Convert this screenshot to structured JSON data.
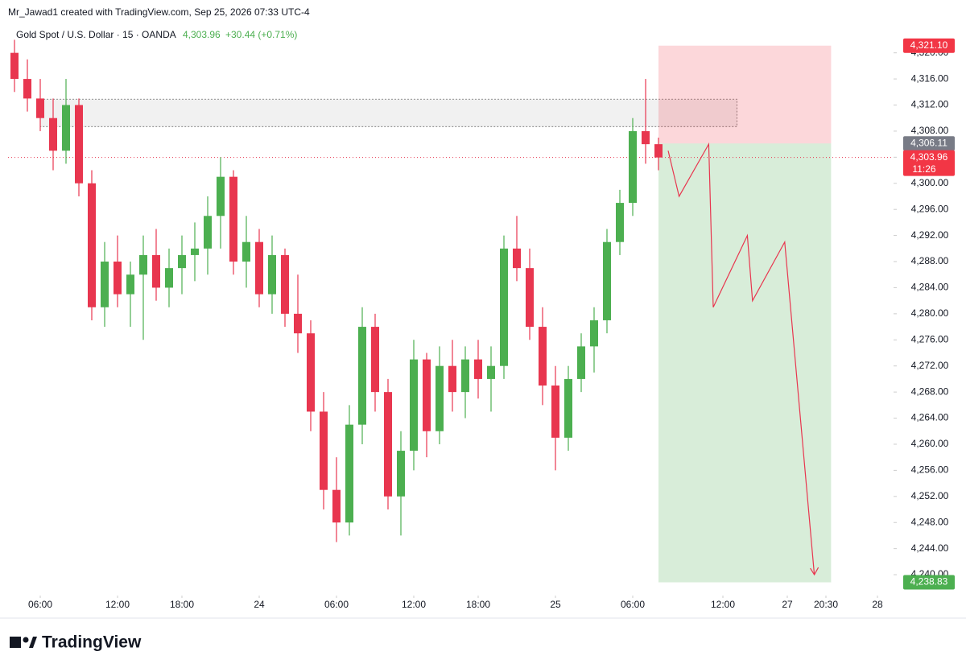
{
  "attribution": "Mr_Jawad1 created with TradingView.com, Sep 25, 2026 07:33 UTC-4",
  "brand": "TradingView",
  "chart_data": {
    "type": "candlestick",
    "title": "Gold Spot / U.S. Dollar · 15 · OANDA",
    "last_price": {
      "value": 4303.96,
      "label": "4,303.96"
    },
    "change": "+30.44 (+0.71%)",
    "countdown": "11:26",
    "up_color": "#4caf50",
    "down_color": "#e8364f",
    "open": [
      4320,
      4316,
      4313,
      4310,
      4305,
      4312,
      4300,
      4281,
      4288,
      4283,
      4286,
      4289,
      4284,
      4287,
      4289,
      4290,
      4295,
      4301,
      4288,
      4291,
      4283,
      4289,
      4280,
      4277,
      4265,
      4253,
      4248,
      4263,
      4278,
      4268,
      4252,
      4259,
      4273,
      4262,
      4272,
      4268,
      4273,
      4270,
      4272,
      4290,
      4287,
      4278,
      4269,
      4261,
      4270,
      4275,
      4279,
      4291,
      4297,
      4308,
      4306
    ],
    "high": [
      4322,
      4319,
      4316,
      4313,
      4316,
      4313,
      4302,
      4291,
      4292,
      4288,
      4292,
      4293,
      4290,
      4292,
      4294,
      4298,
      4304,
      4302,
      4295,
      4293,
      4292,
      4290,
      4286,
      4279,
      4268,
      4258,
      4266,
      4281,
      4280,
      4270,
      4262,
      4276,
      4274,
      4275,
      4276,
      4275,
      4276,
      4275,
      4292,
      4295,
      4290,
      4281,
      4272,
      4272,
      4277,
      4281,
      4293,
      4299,
      4310,
      4316,
      4307
    ],
    "low": [
      4314,
      4311,
      4308,
      4302,
      4303,
      4298,
      4279,
      4278,
      4281,
      4278,
      4276,
      4282,
      4281,
      4283,
      4285,
      4286,
      4290,
      4286,
      4284,
      4281,
      4280,
      4278,
      4274,
      4262,
      4250,
      4245,
      4246,
      4260,
      4265,
      4250,
      4246,
      4256,
      4258,
      4260,
      4265,
      4264,
      4267,
      4265,
      4270,
      4285,
      4276,
      4266,
      4256,
      4259,
      4268,
      4271,
      4277,
      4289,
      4295,
      4303,
      4302
    ],
    "close": [
      4316,
      4313,
      4310,
      4305,
      4312,
      4300,
      4281,
      4288,
      4283,
      4286,
      4289,
      4284,
      4287,
      4289,
      4290,
      4295,
      4301,
      4288,
      4291,
      4283,
      4289,
      4280,
      4277,
      4265,
      4253,
      4248,
      4263,
      4278,
      4268,
      4252,
      4259,
      4273,
      4262,
      4272,
      4268,
      4273,
      4270,
      4272,
      4290,
      4287,
      4278,
      4269,
      4261,
      4270,
      4275,
      4279,
      4291,
      4297,
      4308,
      4306,
      4303.96
    ],
    "xlim": [
      -0.5,
      68.25
    ],
    "ylim": [
      4236.8,
      4324.4
    ],
    "xticks": [
      {
        "value": 2,
        "label": "06:00"
      },
      {
        "value": 8,
        "label": "12:00"
      },
      {
        "value": 13,
        "label": "18:00"
      },
      {
        "value": 19,
        "label": "24"
      },
      {
        "value": 25,
        "label": "06:00"
      },
      {
        "value": 31,
        "label": "12:00"
      },
      {
        "value": 36,
        "label": "18:00"
      },
      {
        "value": 42,
        "label": "25"
      },
      {
        "value": 48,
        "label": "06:00"
      },
      {
        "value": 55,
        "label": "12:00"
      },
      {
        "value": 60,
        "label": "27"
      },
      {
        "value": 63,
        "label": "20:30"
      },
      {
        "value": 67,
        "label": "28"
      }
    ],
    "yticks": [
      {
        "value": 4240,
        "label": "4,240.00"
      },
      {
        "value": 4244,
        "label": "4,244.00"
      },
      {
        "value": 4248,
        "label": "4,248.00"
      },
      {
        "value": 4252,
        "label": "4,252.00"
      },
      {
        "value": 4256,
        "label": "4,256.00"
      },
      {
        "value": 4260,
        "label": "4,260.00"
      },
      {
        "value": 4264,
        "label": "4,264.00"
      },
      {
        "value": 4268,
        "label": "4,268.00"
      },
      {
        "value": 4272,
        "label": "4,272.00"
      },
      {
        "value": 4276,
        "label": "4,276.00"
      },
      {
        "value": 4280,
        "label": "4,280.00"
      },
      {
        "value": 4284,
        "label": "4,284.00"
      },
      {
        "value": 4288,
        "label": "4,288.00"
      },
      {
        "value": 4292,
        "label": "4,292.00"
      },
      {
        "value": 4296,
        "label": "4,296.00"
      },
      {
        "value": 4300,
        "label": "4,300.00"
      },
      {
        "value": 4304,
        "label": "4,304.00"
      },
      {
        "value": 4308,
        "label": "4,308.00"
      },
      {
        "value": 4312,
        "label": "4,312.00"
      },
      {
        "value": 4316,
        "label": "4,316.00"
      },
      {
        "value": 4320,
        "label": "4,320.00"
      }
    ],
    "zone": {
      "x": [
        2,
        56.1
      ],
      "y": [
        4308.7,
        4312.9
      ]
    },
    "position": {
      "x": [
        50,
        63.4
      ],
      "stop": {
        "value": 4321.1,
        "label": "4,321.10"
      },
      "entry": {
        "value": 4306.11,
        "label": "4,306.11"
      },
      "target": {
        "value": 4238.83,
        "label": "4,238.83"
      }
    },
    "projection": {
      "x": [
        50.75,
        51.6,
        53.9,
        54.25,
        56.9,
        57.3,
        59.8,
        62.1
      ],
      "y": [
        4305,
        4298,
        4306,
        4281,
        4292,
        4282,
        4291,
        4240
      ]
    }
  }
}
